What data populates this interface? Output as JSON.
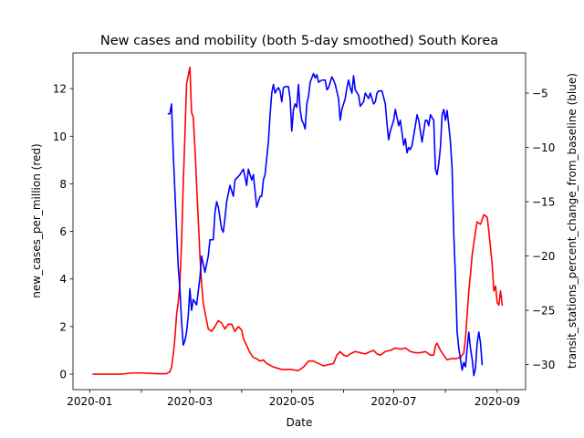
{
  "chart_data": {
    "type": "line",
    "title": "New cases and mobility (both 5-day smoothed) South Korea",
    "xlabel": "Date",
    "ylabel_left": "new_cases_per_million (red)",
    "ylabel_right": "transit_stations_percent_change_from_baseline (blue)",
    "x_ticks": [
      {
        "date": "2020-01-01",
        "label": "2020-01"
      },
      {
        "date": "2020-02-01",
        "label": ""
      },
      {
        "date": "2020-03-01",
        "label": "2020-03"
      },
      {
        "date": "2020-04-01",
        "label": ""
      },
      {
        "date": "2020-05-01",
        "label": "2020-05"
      },
      {
        "date": "2020-06-01",
        "label": ""
      },
      {
        "date": "2020-07-01",
        "label": "2020-07"
      },
      {
        "date": "2020-08-01",
        "label": ""
      },
      {
        "date": "2020-09-01",
        "label": "2020-09"
      }
    ],
    "xlim": [
      "2019-12-22",
      "2020-09-18"
    ],
    "ylim_left": [
      -0.65,
      13.5
    ],
    "yticks_left": [
      0,
      2,
      4,
      6,
      8,
      10,
      12
    ],
    "ylim_right": [
      -32.3,
      -1.3
    ],
    "yticks_right": [
      -30,
      -25,
      -20,
      -15,
      -10,
      -5
    ],
    "grid": false,
    "colors": {
      "left": "#ff0000",
      "right": "#0000ff"
    },
    "series": [
      {
        "axis": "left",
        "color": "#ff0000",
        "points": [
          [
            "2020-01-03",
            0
          ],
          [
            "2020-01-20",
            0
          ],
          [
            "2020-01-26",
            0.05
          ],
          [
            "2020-02-01",
            0.05
          ],
          [
            "2020-02-10",
            0.02
          ],
          [
            "2020-02-16",
            0.02
          ],
          [
            "2020-02-18",
            0.1
          ],
          [
            "2020-02-19",
            0.3
          ],
          [
            "2020-02-20",
            0.8
          ],
          [
            "2020-02-21",
            1.5
          ],
          [
            "2020-02-22",
            2.5
          ],
          [
            "2020-02-23",
            3.0
          ],
          [
            "2020-02-24",
            3.8
          ],
          [
            "2020-02-25",
            5.5
          ],
          [
            "2020-02-26",
            8.0
          ],
          [
            "2020-02-27",
            10.0
          ],
          [
            "2020-02-28",
            12.2
          ],
          [
            "2020-03-01",
            12.9
          ],
          [
            "2020-03-02",
            11.0
          ],
          [
            "2020-03-03",
            10.8
          ],
          [
            "2020-03-04",
            9.5
          ],
          [
            "2020-03-05",
            8.0
          ],
          [
            "2020-03-06",
            6.5
          ],
          [
            "2020-03-07",
            5.0
          ],
          [
            "2020-03-08",
            3.8
          ],
          [
            "2020-03-09",
            3.0
          ],
          [
            "2020-03-10",
            2.6
          ],
          [
            "2020-03-12",
            1.9
          ],
          [
            "2020-03-14",
            1.8
          ],
          [
            "2020-03-16",
            2.0
          ],
          [
            "2020-03-18",
            2.25
          ],
          [
            "2020-03-20",
            2.15
          ],
          [
            "2020-03-22",
            1.9
          ],
          [
            "2020-03-24",
            2.1
          ],
          [
            "2020-03-26",
            2.1
          ],
          [
            "2020-03-28",
            1.8
          ],
          [
            "2020-03-30",
            2.0
          ],
          [
            "2020-04-01",
            1.85
          ],
          [
            "2020-04-02",
            1.5
          ],
          [
            "2020-04-04",
            1.2
          ],
          [
            "2020-04-06",
            0.9
          ],
          [
            "2020-04-08",
            0.7
          ],
          [
            "2020-04-10",
            0.65
          ],
          [
            "2020-04-12",
            0.55
          ],
          [
            "2020-04-14",
            0.6
          ],
          [
            "2020-04-16",
            0.45
          ],
          [
            "2020-04-20",
            0.3
          ],
          [
            "2020-04-25",
            0.2
          ],
          [
            "2020-04-30",
            0.2
          ],
          [
            "2020-05-05",
            0.15
          ],
          [
            "2020-05-08",
            0.3
          ],
          [
            "2020-05-11",
            0.55
          ],
          [
            "2020-05-14",
            0.55
          ],
          [
            "2020-05-17",
            0.45
          ],
          [
            "2020-05-20",
            0.35
          ],
          [
            "2020-05-23",
            0.4
          ],
          [
            "2020-05-26",
            0.45
          ],
          [
            "2020-05-28",
            0.8
          ],
          [
            "2020-05-30",
            0.95
          ],
          [
            "2020-06-01",
            0.8
          ],
          [
            "2020-06-03",
            0.75
          ],
          [
            "2020-06-05",
            0.85
          ],
          [
            "2020-06-08",
            0.95
          ],
          [
            "2020-06-11",
            0.9
          ],
          [
            "2020-06-14",
            0.85
          ],
          [
            "2020-06-17",
            0.95
          ],
          [
            "2020-06-19",
            1.0
          ],
          [
            "2020-06-21",
            0.85
          ],
          [
            "2020-06-23",
            0.8
          ],
          [
            "2020-06-26",
            0.95
          ],
          [
            "2020-06-29",
            1.0
          ],
          [
            "2020-07-02",
            1.1
          ],
          [
            "2020-07-05",
            1.05
          ],
          [
            "2020-07-08",
            1.1
          ],
          [
            "2020-07-11",
            0.95
          ],
          [
            "2020-07-14",
            0.9
          ],
          [
            "2020-07-17",
            0.9
          ],
          [
            "2020-07-20",
            0.95
          ],
          [
            "2020-07-23",
            0.8
          ],
          [
            "2020-07-25",
            0.8
          ],
          [
            "2020-07-26",
            1.2
          ],
          [
            "2020-07-27",
            1.3
          ],
          [
            "2020-07-29",
            1.0
          ],
          [
            "2020-07-31",
            0.8
          ],
          [
            "2020-08-02",
            0.6
          ],
          [
            "2020-08-04",
            0.65
          ],
          [
            "2020-08-07",
            0.65
          ],
          [
            "2020-08-10",
            0.7
          ],
          [
            "2020-08-12",
            0.9
          ],
          [
            "2020-08-13",
            1.5
          ],
          [
            "2020-08-14",
            2.5
          ],
          [
            "2020-08-15",
            3.5
          ],
          [
            "2020-08-16",
            4.2
          ],
          [
            "2020-08-17",
            5.0
          ],
          [
            "2020-08-18",
            5.5
          ],
          [
            "2020-08-19",
            6.0
          ],
          [
            "2020-08-20",
            6.4
          ],
          [
            "2020-08-22",
            6.3
          ],
          [
            "2020-08-24",
            6.7
          ],
          [
            "2020-08-26",
            6.6
          ],
          [
            "2020-08-27",
            6.0
          ],
          [
            "2020-08-28",
            5.3
          ],
          [
            "2020-08-29",
            4.6
          ],
          [
            "2020-08-30",
            3.5
          ],
          [
            "2020-08-31",
            3.7
          ],
          [
            "2020-09-01",
            3.0
          ],
          [
            "2020-09-02",
            2.9
          ],
          [
            "2020-09-03",
            3.5
          ],
          [
            "2020-09-04",
            2.9
          ]
        ]
      },
      {
        "axis": "right",
        "color": "#0000ff",
        "points": [
          [
            "2020-02-17",
            -6.9
          ],
          [
            "2020-02-18",
            -6.9
          ],
          [
            "2020-02-19",
            -6.0
          ],
          [
            "2020-02-20",
            -10.5
          ],
          [
            "2020-02-21",
            -14.0
          ],
          [
            "2020-02-22",
            -17.5
          ],
          [
            "2020-02-23",
            -21.0
          ],
          [
            "2020-02-24",
            -23.0
          ],
          [
            "2020-02-25",
            -26.0
          ],
          [
            "2020-02-26",
            -28.2
          ],
          [
            "2020-02-27",
            -27.8
          ],
          [
            "2020-02-28",
            -27.0
          ],
          [
            "2020-02-29",
            -25.5
          ],
          [
            "2020-03-01",
            -23.0
          ],
          [
            "2020-03-02",
            -25.0
          ],
          [
            "2020-03-03",
            -24.0
          ],
          [
            "2020-03-05",
            -24.5
          ],
          [
            "2020-03-07",
            -22.0
          ],
          [
            "2020-03-08",
            -20.0
          ],
          [
            "2020-03-10",
            -21.5
          ],
          [
            "2020-03-12",
            -20.0
          ],
          [
            "2020-03-13",
            -18.5
          ],
          [
            "2020-03-15",
            -18.5
          ],
          [
            "2020-03-16",
            -16.0
          ],
          [
            "2020-03-17",
            -15.0
          ],
          [
            "2020-03-18",
            -15.5
          ],
          [
            "2020-03-20",
            -17.5
          ],
          [
            "2020-03-21",
            -17.8
          ],
          [
            "2020-03-22",
            -16.5
          ],
          [
            "2020-03-23",
            -15.0
          ],
          [
            "2020-03-25",
            -13.5
          ],
          [
            "2020-03-27",
            -14.5
          ],
          [
            "2020-03-28",
            -13.0
          ],
          [
            "2020-03-31",
            -12.5
          ],
          [
            "2020-04-02",
            -12.0
          ],
          [
            "2020-04-04",
            -13.5
          ],
          [
            "2020-04-05",
            -12.0
          ],
          [
            "2020-04-07",
            -13.0
          ],
          [
            "2020-04-08",
            -12.5
          ],
          [
            "2020-04-10",
            -15.5
          ],
          [
            "2020-04-11",
            -15.0
          ],
          [
            "2020-04-12",
            -14.5
          ],
          [
            "2020-04-13",
            -14.5
          ],
          [
            "2020-04-14",
            -13.0
          ],
          [
            "2020-04-15",
            -12.5
          ],
          [
            "2020-04-16",
            -11.0
          ],
          [
            "2020-04-17",
            -9.5
          ],
          [
            "2020-04-18",
            -7.0
          ],
          [
            "2020-04-19",
            -5.0
          ],
          [
            "2020-04-20",
            -4.2
          ],
          [
            "2020-04-21",
            -5.0
          ],
          [
            "2020-04-22",
            -4.7
          ],
          [
            "2020-04-23",
            -4.5
          ],
          [
            "2020-04-24",
            -4.8
          ],
          [
            "2020-04-25",
            -5.8
          ],
          [
            "2020-04-26",
            -4.5
          ],
          [
            "2020-04-27",
            -4.4
          ],
          [
            "2020-04-29",
            -4.4
          ],
          [
            "2020-04-30",
            -5.5
          ],
          [
            "2020-05-01",
            -8.5
          ],
          [
            "2020-05-02",
            -6.5
          ],
          [
            "2020-05-03",
            -6.0
          ],
          [
            "2020-05-04",
            -6.3
          ],
          [
            "2020-05-05",
            -4.2
          ],
          [
            "2020-05-06",
            -6.5
          ],
          [
            "2020-05-07",
            -7.5
          ],
          [
            "2020-05-08",
            -7.8
          ],
          [
            "2020-05-09",
            -8.3
          ],
          [
            "2020-05-10",
            -6.0
          ],
          [
            "2020-05-11",
            -5.3
          ],
          [
            "2020-05-12",
            -4.0
          ],
          [
            "2020-05-13",
            -3.6
          ],
          [
            "2020-05-14",
            -3.2
          ],
          [
            "2020-05-15",
            -3.6
          ],
          [
            "2020-05-16",
            -3.3
          ],
          [
            "2020-05-17",
            -4.0
          ],
          [
            "2020-05-19",
            -3.8
          ],
          [
            "2020-05-21",
            -3.8
          ],
          [
            "2020-05-22",
            -4.7
          ],
          [
            "2020-05-23",
            -4.5
          ],
          [
            "2020-05-24",
            -4.0
          ],
          [
            "2020-05-25",
            -3.5
          ],
          [
            "2020-05-26",
            -3.8
          ],
          [
            "2020-05-27",
            -4.2
          ],
          [
            "2020-05-29",
            -5.5
          ],
          [
            "2020-05-30",
            -7.5
          ],
          [
            "2020-05-31",
            -6.5
          ],
          [
            "2020-06-02",
            -5.5
          ],
          [
            "2020-06-03",
            -4.5
          ],
          [
            "2020-06-04",
            -3.8
          ],
          [
            "2020-06-05",
            -4.5
          ],
          [
            "2020-06-06",
            -5.0
          ],
          [
            "2020-06-07",
            -3.4
          ],
          [
            "2020-06-08",
            -4.7
          ],
          [
            "2020-06-10",
            -5.2
          ],
          [
            "2020-06-11",
            -6.2
          ],
          [
            "2020-06-13",
            -5.8
          ],
          [
            "2020-06-14",
            -5.0
          ],
          [
            "2020-06-16",
            -5.5
          ],
          [
            "2020-06-17",
            -5.0
          ],
          [
            "2020-06-19",
            -6.0
          ],
          [
            "2020-06-20",
            -5.8
          ],
          [
            "2020-06-21",
            -5.0
          ],
          [
            "2020-06-22",
            -4.8
          ],
          [
            "2020-06-24",
            -4.8
          ],
          [
            "2020-06-26",
            -6.0
          ],
          [
            "2020-06-27",
            -7.8
          ],
          [
            "2020-06-28",
            -9.3
          ],
          [
            "2020-06-29",
            -8.5
          ],
          [
            "2020-06-30",
            -8.0
          ],
          [
            "2020-07-01",
            -7.5
          ],
          [
            "2020-07-02",
            -6.5
          ],
          [
            "2020-07-04",
            -8.0
          ],
          [
            "2020-07-05",
            -7.5
          ],
          [
            "2020-07-07",
            -9.8
          ],
          [
            "2020-07-08",
            -9.2
          ],
          [
            "2020-07-09",
            -10.5
          ],
          [
            "2020-07-10",
            -10.0
          ],
          [
            "2020-07-11",
            -10.2
          ],
          [
            "2020-07-12",
            -9.8
          ],
          [
            "2020-07-14",
            -8.0
          ],
          [
            "2020-07-15",
            -7.0
          ],
          [
            "2020-07-16",
            -7.5
          ],
          [
            "2020-07-17",
            -8.5
          ],
          [
            "2020-07-18",
            -9.5
          ],
          [
            "2020-07-19",
            -8.5
          ],
          [
            "2020-07-20",
            -7.5
          ],
          [
            "2020-07-21",
            -7.5
          ],
          [
            "2020-07-22",
            -8.0
          ],
          [
            "2020-07-23",
            -7.0
          ],
          [
            "2020-07-25",
            -7.5
          ],
          [
            "2020-07-26",
            -12.0
          ],
          [
            "2020-07-27",
            -12.5
          ],
          [
            "2020-07-28",
            -11.5
          ],
          [
            "2020-07-29",
            -10.0
          ],
          [
            "2020-07-30",
            -7.0
          ],
          [
            "2020-07-31",
            -6.5
          ],
          [
            "2020-08-01",
            -7.5
          ],
          [
            "2020-08-02",
            -6.6
          ],
          [
            "2020-08-03",
            -8.0
          ],
          [
            "2020-08-04",
            -9.5
          ],
          [
            "2020-08-05",
            -12.0
          ],
          [
            "2020-08-06",
            -18.0
          ],
          [
            "2020-08-07",
            -22.0
          ],
          [
            "2020-08-08",
            -27.0
          ],
          [
            "2020-08-09",
            -28.5
          ],
          [
            "2020-08-10",
            -29.5
          ],
          [
            "2020-08-11",
            -30.5
          ],
          [
            "2020-08-12",
            -29.8
          ],
          [
            "2020-08-13",
            -30.2
          ],
          [
            "2020-08-14",
            -28.5
          ],
          [
            "2020-08-15",
            -27.0
          ],
          [
            "2020-08-16",
            -28.5
          ],
          [
            "2020-08-17",
            -29.5
          ],
          [
            "2020-08-18",
            -31.0
          ],
          [
            "2020-08-19",
            -30.3
          ],
          [
            "2020-08-20",
            -28.0
          ],
          [
            "2020-08-21",
            -27.0
          ],
          [
            "2020-08-22",
            -28.0
          ],
          [
            "2020-08-23",
            -30.0
          ]
        ]
      }
    ]
  }
}
